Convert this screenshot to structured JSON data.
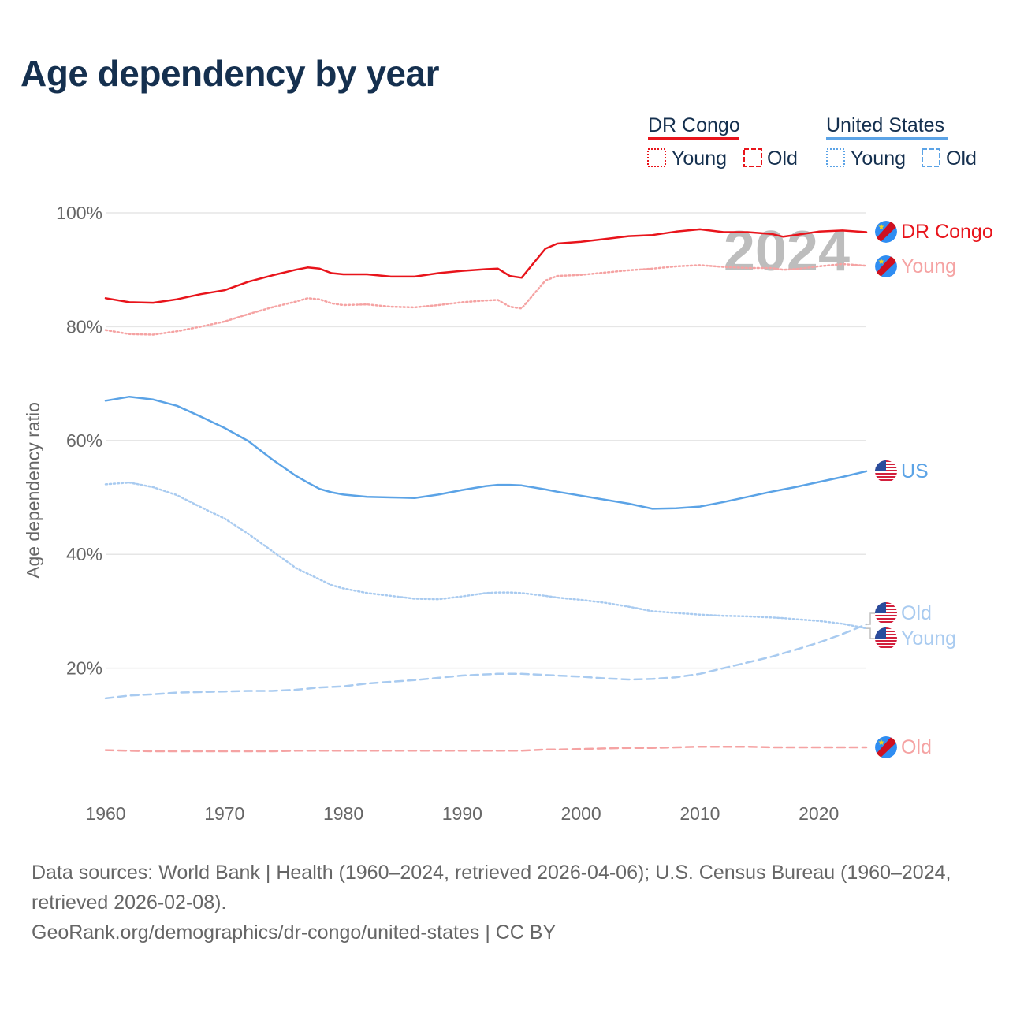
{
  "title": "Age dependency by year",
  "legend": {
    "groups": [
      {
        "name": "DR Congo",
        "color": "#e8141b",
        "items": [
          "Young",
          "Old"
        ]
      },
      {
        "name": "United States",
        "color": "#5ba3e6",
        "items": [
          "Young",
          "Old"
        ]
      }
    ]
  },
  "year_label": "2024",
  "end_labels": [
    {
      "text": "DR Congo",
      "color": "#e8141b",
      "flag": "dr-congo-flag-icon",
      "series": "congo_total"
    },
    {
      "text": "Young",
      "color": "#f5a3a3",
      "flag": "dr-congo-flag-icon",
      "series": "congo_young"
    },
    {
      "text": "US",
      "color": "#5ba3e6",
      "flag": "us-flag-icon",
      "series": "us_total"
    },
    {
      "text": "Old",
      "color": "#a9cbf0",
      "flag": "us-flag-icon",
      "series": "us_old"
    },
    {
      "text": "Young",
      "color": "#a9cbf0",
      "flag": "us-flag-icon",
      "series": "us_young"
    },
    {
      "text": "Old",
      "color": "#f5a3a3",
      "flag": "dr-congo-flag-icon",
      "series": "congo_old"
    }
  ],
  "chart_data": {
    "type": "line",
    "title": "Age dependency by year",
    "xlabel": "",
    "ylabel": "Age dependency ratio",
    "xlim": [
      1960,
      2024
    ],
    "ylim": [
      0,
      100
    ],
    "x_ticks": [
      1960,
      1970,
      1980,
      1990,
      2000,
      2010,
      2020
    ],
    "y_ticks": [
      20,
      40,
      60,
      80,
      100
    ],
    "y_tick_labels": [
      "20%",
      "40%",
      "60%",
      "80%",
      "100%"
    ],
    "grid": true,
    "x": [
      1960,
      1962,
      1964,
      1966,
      1968,
      1970,
      1972,
      1974,
      1976,
      1977,
      1978,
      1979,
      1980,
      1982,
      1984,
      1986,
      1988,
      1990,
      1992,
      1993,
      1994,
      1995,
      1997,
      1998,
      2000,
      2002,
      2004,
      2006,
      2008,
      2010,
      2012,
      2014,
      2016,
      2017,
      2018,
      2020,
      2022,
      2024
    ],
    "series": [
      {
        "name": "DR Congo",
        "key": "congo_total",
        "color": "#e8141b",
        "style": "solid",
        "values": [
          85.0,
          84.3,
          84.2,
          84.8,
          85.7,
          86.4,
          87.9,
          89.0,
          90.0,
          90.4,
          90.2,
          89.4,
          89.2,
          89.2,
          88.8,
          88.8,
          89.4,
          89.8,
          90.1,
          90.2,
          88.9,
          88.6,
          93.7,
          94.6,
          94.9,
          95.4,
          95.9,
          96.1,
          96.7,
          97.1,
          96.6,
          96.6,
          96.3,
          95.8,
          96.1,
          96.7,
          96.9,
          96.6
        ]
      },
      {
        "name": "Young",
        "key": "congo_young",
        "color": "#f5a3a3",
        "style": "dotted",
        "values": [
          79.4,
          78.7,
          78.6,
          79.2,
          80.0,
          80.9,
          82.2,
          83.4,
          84.4,
          85.0,
          84.8,
          84.1,
          83.8,
          83.9,
          83.5,
          83.4,
          83.8,
          84.3,
          84.6,
          84.7,
          83.5,
          83.2,
          88.1,
          88.9,
          89.1,
          89.5,
          89.9,
          90.2,
          90.6,
          90.8,
          90.5,
          90.3,
          90.3,
          90.0,
          90.1,
          90.6,
          91.0,
          90.7
        ]
      },
      {
        "name": "Old",
        "key": "congo_old",
        "color": "#f5a3a3",
        "style": "dashed",
        "values": [
          5.6,
          5.5,
          5.4,
          5.4,
          5.4,
          5.4,
          5.4,
          5.4,
          5.5,
          5.5,
          5.5,
          5.5,
          5.5,
          5.5,
          5.5,
          5.5,
          5.5,
          5.5,
          5.5,
          5.5,
          5.5,
          5.5,
          5.7,
          5.7,
          5.8,
          5.9,
          6.0,
          6.0,
          6.1,
          6.2,
          6.2,
          6.2,
          6.1,
          6.1,
          6.1,
          6.1,
          6.1,
          6.1
        ]
      },
      {
        "name": "US",
        "key": "us_total",
        "color": "#5ba3e6",
        "style": "solid",
        "values": [
          67.0,
          67.7,
          67.2,
          66.1,
          64.2,
          62.2,
          59.9,
          56.7,
          53.8,
          52.6,
          51.5,
          50.9,
          50.5,
          50.1,
          50.0,
          49.9,
          50.5,
          51.3,
          52.0,
          52.2,
          52.2,
          52.1,
          51.4,
          51.0,
          50.3,
          49.6,
          48.9,
          48.0,
          48.1,
          48.4,
          49.2,
          50.1,
          51.0,
          51.4,
          51.8,
          52.7,
          53.6,
          54.6
        ]
      },
      {
        "name": "Young",
        "key": "us_young",
        "color": "#a9cbf0",
        "style": "dotted",
        "values": [
          52.3,
          52.6,
          51.8,
          50.4,
          48.3,
          46.3,
          43.6,
          40.6,
          37.6,
          36.6,
          35.6,
          34.6,
          34.0,
          33.2,
          32.7,
          32.2,
          32.1,
          32.6,
          33.2,
          33.3,
          33.3,
          33.2,
          32.7,
          32.4,
          32.0,
          31.5,
          30.8,
          30.0,
          29.7,
          29.4,
          29.2,
          29.1,
          28.9,
          28.8,
          28.6,
          28.3,
          27.8,
          27.0
        ]
      },
      {
        "name": "Old",
        "key": "us_old",
        "color": "#a9cbf0",
        "style": "dashed",
        "values": [
          14.7,
          15.2,
          15.4,
          15.7,
          15.8,
          15.9,
          16.0,
          16.0,
          16.2,
          16.4,
          16.6,
          16.7,
          16.8,
          17.3,
          17.6,
          17.9,
          18.3,
          18.7,
          18.9,
          19.0,
          19.0,
          19.0,
          18.8,
          18.7,
          18.5,
          18.2,
          18.0,
          18.1,
          18.4,
          19.0,
          20.0,
          21.0,
          22.0,
          22.6,
          23.2,
          24.5,
          26.0,
          27.7
        ]
      }
    ]
  },
  "footer": {
    "sources": "Data sources: World Bank | Health (1960–2024, retrieved 2026-04-06); U.S. Census Bureau (1960–2024, retrieved 2026-02-08).",
    "credit": "GeoRank.org/demographics/dr-congo/united-states | CC BY"
  }
}
